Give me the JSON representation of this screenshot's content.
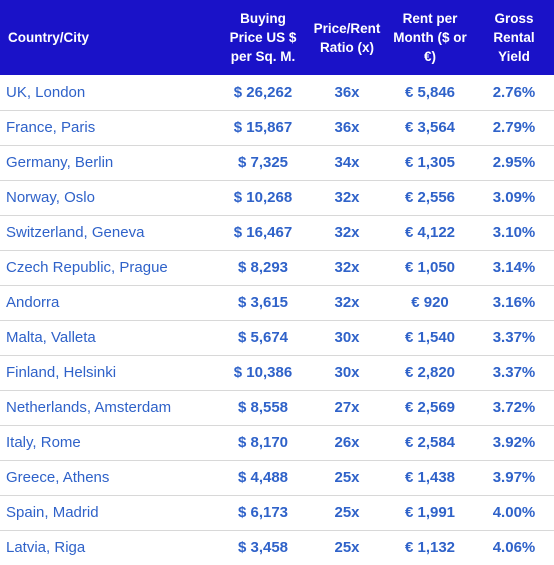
{
  "table": {
    "headers": [
      "Country/City",
      "Buying Price US $ per Sq. M.",
      "Price/Rent Ratio (x)",
      "Rent per Month ($ or €)",
      "Gross Rental Yield"
    ],
    "rows": [
      [
        "UK, London",
        "$ 26,262",
        "36x",
        "€ 5,846",
        "2.76%"
      ],
      [
        "France, Paris",
        "$ 15,867",
        "36x",
        "€ 3,564",
        "2.79%"
      ],
      [
        "Germany, Berlin",
        "$ 7,325",
        "34x",
        "€ 1,305",
        "2.95%"
      ],
      [
        "Norway, Oslo",
        "$ 10,268",
        "32x",
        "€ 2,556",
        "3.09%"
      ],
      [
        "Switzerland, Geneva",
        "$ 16,467",
        "32x",
        "€ 4,122",
        "3.10%"
      ],
      [
        "Czech Republic, Prague",
        "$ 8,293",
        "32x",
        "€ 1,050",
        "3.14%"
      ],
      [
        "Andorra",
        "$ 3,615",
        "32x",
        "€ 920",
        "3.16%"
      ],
      [
        "Malta, Valleta",
        "$ 5,674",
        "30x",
        "€ 1,540",
        "3.37%"
      ],
      [
        "Finland, Helsinki",
        "$ 10,386",
        "30x",
        "€ 2,820",
        "3.37%"
      ],
      [
        "Netherlands, Amsterdam",
        "$ 8,558",
        "27x",
        "€ 2,569",
        "3.72%"
      ],
      [
        "Italy, Rome",
        "$ 8,170",
        "26x",
        "€ 2,584",
        "3.92%"
      ],
      [
        "Greece, Athens",
        "$ 4,488",
        "25x",
        "€ 1,438",
        "3.97%"
      ],
      [
        "Spain, Madrid",
        "$ 6,173",
        "25x",
        "€ 1,991",
        "4.00%"
      ],
      [
        "Latvia, Riga",
        "$ 3,458",
        "25x",
        "€ 1,132",
        "4.06%"
      ]
    ]
  },
  "colors": {
    "header_bg": "#1a12c8",
    "header_text": "#ffffff",
    "cell_text": "#2f62c9",
    "row_divider": "#d8d8d8"
  }
}
